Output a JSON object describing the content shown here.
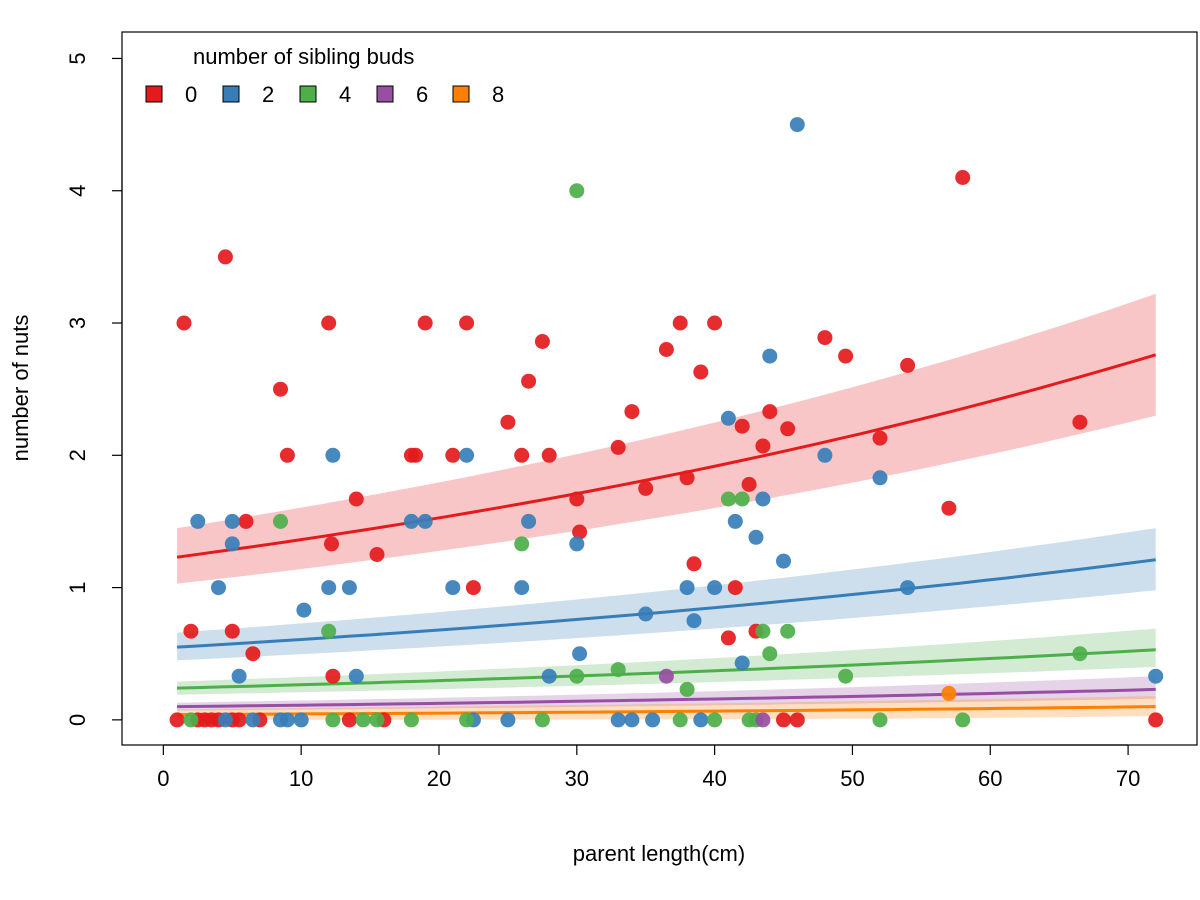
{
  "chart_data": {
    "type": "scatter",
    "title": "",
    "xlabel": "parent length(cm)",
    "ylabel": "number of nuts",
    "xlim": [
      -3,
      75
    ],
    "ylim": [
      -0.19,
      5.2
    ],
    "xticks": [
      0,
      10,
      20,
      30,
      40,
      50,
      60,
      70
    ],
    "yticks": [
      0,
      1,
      2,
      3,
      4,
      5
    ],
    "grid": false,
    "legend": {
      "title": "number of sibling buds",
      "placement": "top-left",
      "entries": [
        "0",
        "2",
        "4",
        "6",
        "8"
      ]
    },
    "series": [
      {
        "name": "0",
        "color": "#E41A1C",
        "points": [
          [
            1,
            0
          ],
          [
            1.5,
            3
          ],
          [
            2,
            0.67
          ],
          [
            2.5,
            0
          ],
          [
            3,
            0
          ],
          [
            3.5,
            0
          ],
          [
            4,
            0
          ],
          [
            4.5,
            3.5
          ],
          [
            5,
            0
          ],
          [
            5,
            0.67
          ],
          [
            5.5,
            0
          ],
          [
            6,
            1.5
          ],
          [
            6.5,
            0.5
          ],
          [
            7,
            0
          ],
          [
            8.5,
            2.5
          ],
          [
            9,
            2
          ],
          [
            12,
            3
          ],
          [
            12.2,
            1.33
          ],
          [
            12.3,
            0.33
          ],
          [
            13.5,
            0
          ],
          [
            14,
            1.67
          ],
          [
            15.5,
            1.25
          ],
          [
            16,
            0
          ],
          [
            18,
            2
          ],
          [
            18.3,
            2
          ],
          [
            19,
            3
          ],
          [
            21,
            2
          ],
          [
            22,
            3
          ],
          [
            22.5,
            1
          ],
          [
            25,
            2.25
          ],
          [
            26,
            2
          ],
          [
            26.5,
            2.56
          ],
          [
            27.5,
            2.86
          ],
          [
            28,
            2
          ],
          [
            30,
            1.67
          ],
          [
            30.2,
            1.42
          ],
          [
            33,
            2.06
          ],
          [
            34,
            2.33
          ],
          [
            35,
            1.75
          ],
          [
            36.5,
            2.8
          ],
          [
            37.5,
            3
          ],
          [
            38,
            1.83
          ],
          [
            38.5,
            1.18
          ],
          [
            39,
            2.63
          ],
          [
            40,
            3
          ],
          [
            41,
            0.62
          ],
          [
            41.5,
            1
          ],
          [
            42,
            2.22
          ],
          [
            42.5,
            1.78
          ],
          [
            43,
            0.67
          ],
          [
            43.5,
            2.07
          ],
          [
            44,
            2.33
          ],
          [
            45,
            0
          ],
          [
            45.3,
            2.2
          ],
          [
            46,
            0
          ],
          [
            48,
            2.89
          ],
          [
            49.5,
            2.75
          ],
          [
            52,
            2.13
          ],
          [
            54,
            2.68
          ],
          [
            57,
            1.6
          ],
          [
            58,
            4.1
          ],
          [
            66.5,
            2.25
          ],
          [
            72,
            0
          ]
        ],
        "fit": {
          "x": [
            1,
            72
          ],
          "y": [
            1.23,
            2.76
          ],
          "lower": [
            1.03,
            2.3
          ],
          "upper": [
            1.45,
            3.22
          ]
        }
      },
      {
        "name": "2",
        "color": "#377EB8",
        "points": [
          [
            2.5,
            1.5
          ],
          [
            4,
            1
          ],
          [
            4.5,
            0
          ],
          [
            5,
            1.5
          ],
          [
            5,
            1.33
          ],
          [
            5.5,
            0.33
          ],
          [
            6.5,
            0
          ],
          [
            8.5,
            0
          ],
          [
            9,
            0
          ],
          [
            10,
            0
          ],
          [
            10.2,
            0.83
          ],
          [
            12,
            1
          ],
          [
            12.3,
            2
          ],
          [
            13.5,
            1
          ],
          [
            14,
            0.33
          ],
          [
            18,
            1.5
          ],
          [
            19,
            1.5
          ],
          [
            21,
            1
          ],
          [
            22,
            2
          ],
          [
            22.5,
            0
          ],
          [
            25,
            0
          ],
          [
            26,
            1
          ],
          [
            26.5,
            1.5
          ],
          [
            28,
            0.33
          ],
          [
            30,
            1.33
          ],
          [
            30.2,
            0.5
          ],
          [
            33,
            0
          ],
          [
            34,
            0
          ],
          [
            35,
            0.8
          ],
          [
            35.5,
            0
          ],
          [
            38,
            1
          ],
          [
            38.5,
            0.75
          ],
          [
            39,
            0
          ],
          [
            40,
            1
          ],
          [
            41,
            2.28
          ],
          [
            41.5,
            1.5
          ],
          [
            42,
            0.43
          ],
          [
            43,
            1.38
          ],
          [
            43.5,
            1.67
          ],
          [
            44,
            2.75
          ],
          [
            45,
            1.2
          ],
          [
            46,
            4.5
          ],
          [
            48,
            2
          ],
          [
            52,
            1.83
          ],
          [
            54,
            1
          ],
          [
            72,
            0.33
          ]
        ],
        "fit": {
          "x": [
            1,
            72
          ],
          "y": [
            0.55,
            1.21
          ],
          "lower": [
            0.45,
            0.98
          ],
          "upper": [
            0.66,
            1.45
          ]
        }
      },
      {
        "name": "4",
        "color": "#4DAF4A",
        "points": [
          [
            2,
            0
          ],
          [
            8.5,
            1.5
          ],
          [
            12,
            0.67
          ],
          [
            12.3,
            0
          ],
          [
            14.5,
            0
          ],
          [
            15.5,
            0
          ],
          [
            18,
            0
          ],
          [
            22,
            0
          ],
          [
            26,
            1.33
          ],
          [
            27.5,
            0
          ],
          [
            30,
            0.33
          ],
          [
            30,
            4
          ],
          [
            33,
            0.38
          ],
          [
            37.5,
            0
          ],
          [
            38,
            0.23
          ],
          [
            40,
            0
          ],
          [
            41,
            1.67
          ],
          [
            42,
            1.67
          ],
          [
            42.5,
            0
          ],
          [
            43,
            0
          ],
          [
            43.5,
            0.67
          ],
          [
            44,
            0.5
          ],
          [
            45.3,
            0.67
          ],
          [
            49.5,
            0.33
          ],
          [
            52,
            0
          ],
          [
            58,
            0
          ],
          [
            66.5,
            0.5
          ]
        ],
        "fit": {
          "x": [
            1,
            72
          ],
          "y": [
            0.24,
            0.53
          ],
          "lower": [
            0.19,
            0.4
          ],
          "upper": [
            0.29,
            0.69
          ]
        }
      },
      {
        "name": "6",
        "color": "#984EA3",
        "points": [
          [
            36.5,
            0.33
          ],
          [
            43.5,
            0
          ]
        ],
        "fit": {
          "x": [
            1,
            72
          ],
          "y": [
            0.1,
            0.23
          ],
          "lower": [
            0.07,
            0.16
          ],
          "upper": [
            0.13,
            0.33
          ]
        }
      },
      {
        "name": "8",
        "color": "#FF7F00",
        "points": [
          [
            57,
            0.2
          ]
        ],
        "fit": {
          "x": [
            1,
            72
          ],
          "y": [
            0.04,
            0.1
          ],
          "lower": [
            0.0,
            0.03
          ],
          "upper": [
            0.08,
            0.18
          ]
        }
      }
    ]
  }
}
